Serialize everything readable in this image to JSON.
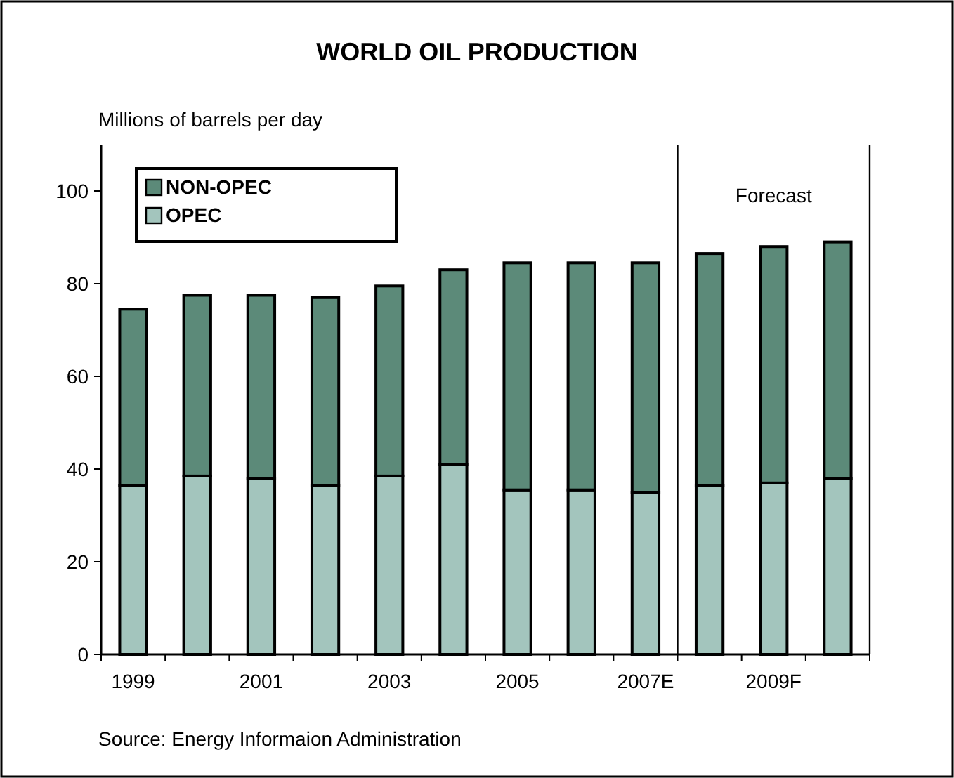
{
  "chart_data": {
    "type": "bar",
    "title": "WORLD OIL PRODUCTION",
    "ylabel": "Millions of barrels per day",
    "categories": [
      "1999",
      null,
      "2001",
      null,
      "2003",
      null,
      "2005",
      null,
      "2007E",
      null,
      "2009F",
      null
    ],
    "stacked": true,
    "series": [
      {
        "name": "OPEC",
        "color": "#a3c5bd",
        "values": [
          36.5,
          38.5,
          38,
          36.5,
          38.5,
          41,
          35.5,
          35.5,
          35,
          36.5,
          37,
          38
        ]
      },
      {
        "name": "NON-OPEC",
        "color": "#5c8a79",
        "values": [
          38,
          39,
          39.5,
          40.5,
          41,
          42,
          49,
          49,
          49.5,
          50,
          51,
          51
        ]
      }
    ],
    "ylim": [
      0,
      110
    ],
    "yticks": [
      0,
      20,
      40,
      60,
      80,
      100
    ],
    "legend": "top left",
    "grid": false,
    "annotations": [
      "Forecast",
      "Source: Energy Informaion Administration"
    ]
  }
}
